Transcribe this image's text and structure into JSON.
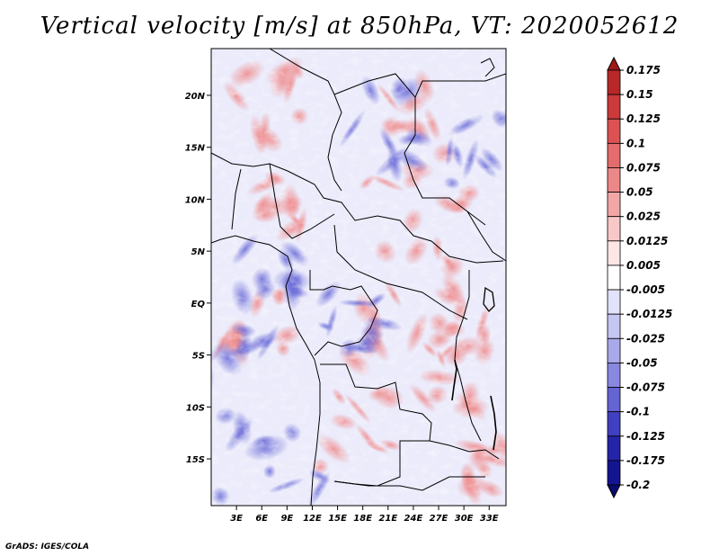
{
  "chart_data": {
    "type": "heatmap",
    "title": "Vertical velocity [m/s] at 850hPa, VT: 2020052612",
    "variable": "Vertical velocity",
    "units": "m/s",
    "level": "850hPa",
    "valid_time": "2020052612",
    "x_axis": {
      "label": "",
      "range": [
        0,
        35
      ],
      "ticks": [
        3,
        6,
        9,
        12,
        15,
        18,
        21,
        24,
        27,
        30,
        33
      ],
      "tick_labels": [
        "3E",
        "6E",
        "9E",
        "12E",
        "15E",
        "18E",
        "21E",
        "24E",
        "27E",
        "30E",
        "33E"
      ]
    },
    "y_axis": {
      "label": "",
      "range": [
        -19.5,
        24.5
      ],
      "ticks": [
        20,
        15,
        10,
        5,
        0,
        -5,
        -10,
        -15
      ],
      "tick_labels": [
        "20N",
        "15N",
        "10N",
        "5N",
        "EQ",
        "5S",
        "10S",
        "15S"
      ]
    },
    "colorbar": {
      "labels": [
        "0.175",
        "0.15",
        "0.125",
        "0.1",
        "0.075",
        "0.05",
        "0.025",
        "0.0125",
        "0.005",
        "-0.005",
        "-0.0125",
        "-0.025",
        "-0.05",
        "-0.075",
        "-0.1",
        "-0.125",
        "-0.175",
        "-0.2"
      ],
      "colors": [
        "#a01818",
        "#b82828",
        "#cc3a3a",
        "#dc5252",
        "#e46c6c",
        "#ec8888",
        "#f2a6a6",
        "#f8c8c8",
        "#fde6e6",
        "#ffffff",
        "#e2e2fa",
        "#c6c6f2",
        "#a8a8ea",
        "#8888e0",
        "#6464d2",
        "#4040c0",
        "#2424a8",
        "#141490",
        "#0a0a70"
      ]
    }
  },
  "footer": "GrADS: IGES/COLA"
}
